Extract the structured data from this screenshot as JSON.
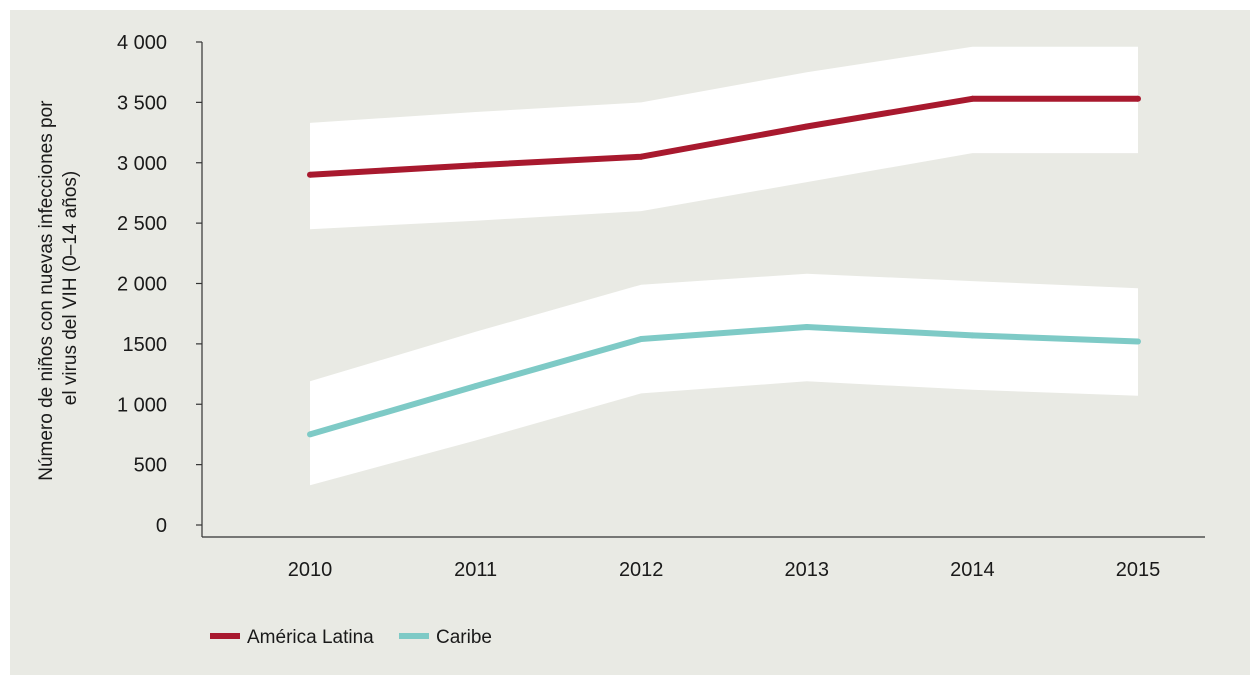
{
  "chart_data": {
    "type": "line",
    "title": "",
    "ylabel_lines": [
      "Número de niños con nuevas infecciones por",
      "el virus del VIH (0–14 años)"
    ],
    "xlabel": "",
    "categories": [
      "2010",
      "2011",
      "2012",
      "2013",
      "2014",
      "2015"
    ],
    "ylim": [
      0,
      4000
    ],
    "yticks": [
      0,
      500,
      1000,
      1500,
      2000,
      2500,
      3000,
      3500,
      4000
    ],
    "ytick_labels": [
      "0",
      "500",
      "1 000",
      "1500",
      "2 000",
      "2 500",
      "3 000",
      "3 500",
      "4 000"
    ],
    "grid": false,
    "legend_position": "bottom-left",
    "series": [
      {
        "name": "América Latina",
        "color": "#a8192e",
        "values": [
          2900,
          2980,
          3050,
          3300,
          3530,
          3530
        ],
        "upper": [
          3330,
          3420,
          3500,
          3750,
          3960,
          3960
        ],
        "lower": [
          2450,
          2520,
          2600,
          2840,
          3080,
          3080
        ]
      },
      {
        "name": "Caribe",
        "color": "#7ecac6",
        "values": [
          750,
          1150,
          1540,
          1640,
          1570,
          1520
        ],
        "upper": [
          1190,
          1600,
          1990,
          2080,
          2020,
          1960
        ],
        "lower": [
          330,
          700,
          1090,
          1190,
          1120,
          1070
        ]
      }
    ],
    "band_color": "#ffffff",
    "axis_color": "#333333"
  }
}
